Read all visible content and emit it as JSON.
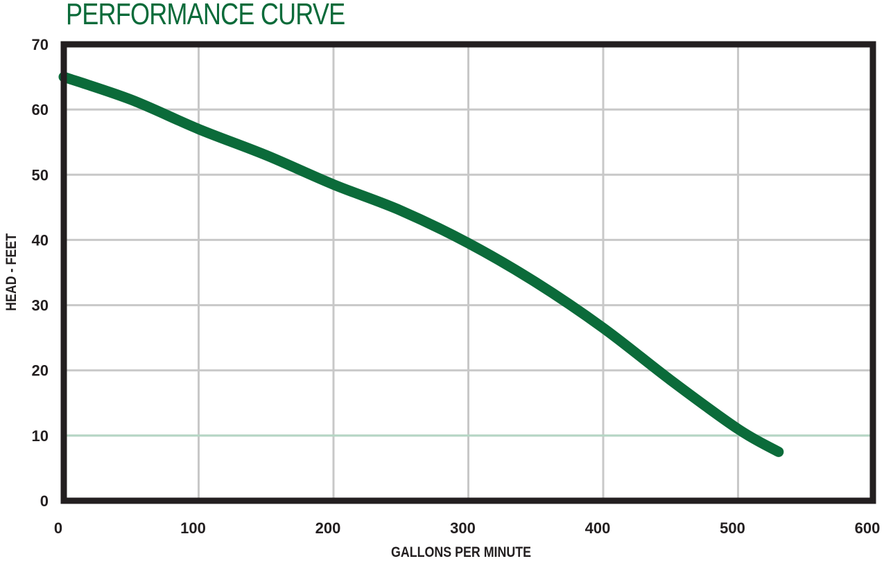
{
  "chart_data": {
    "type": "line",
    "title": "PERFORMANCE CURVE",
    "xlabel": "GALLONS PER MINUTE",
    "ylabel": "HEAD - FEET",
    "xlim": [
      0,
      600
    ],
    "ylim": [
      0,
      70
    ],
    "x_ticks": [
      0,
      100,
      200,
      300,
      400,
      500,
      600
    ],
    "y_ticks": [
      0,
      10,
      20,
      30,
      40,
      50,
      60,
      70
    ],
    "grid": true,
    "highlight_line": {
      "y": 10,
      "color": "#b5d6c4"
    },
    "series": [
      {
        "name": "Head",
        "color": "#0b6b3a",
        "x": [
          0,
          50,
          100,
          150,
          200,
          250,
          300,
          350,
          400,
          450,
          500,
          530
        ],
        "y": [
          65,
          61.5,
          57,
          53,
          48.5,
          44.5,
          39.5,
          33.5,
          26.5,
          18.5,
          11,
          7.5
        ]
      }
    ]
  },
  "labels": {
    "title": "PERFORMANCE CURVE",
    "xlabel": "GALLONS PER MINUTE",
    "ylabel": "HEAD - FEET"
  },
  "colors": {
    "title": "#0b6b3a",
    "curve": "#0b6b3a",
    "frame": "#231f20",
    "grid": "#c8c8c8"
  }
}
